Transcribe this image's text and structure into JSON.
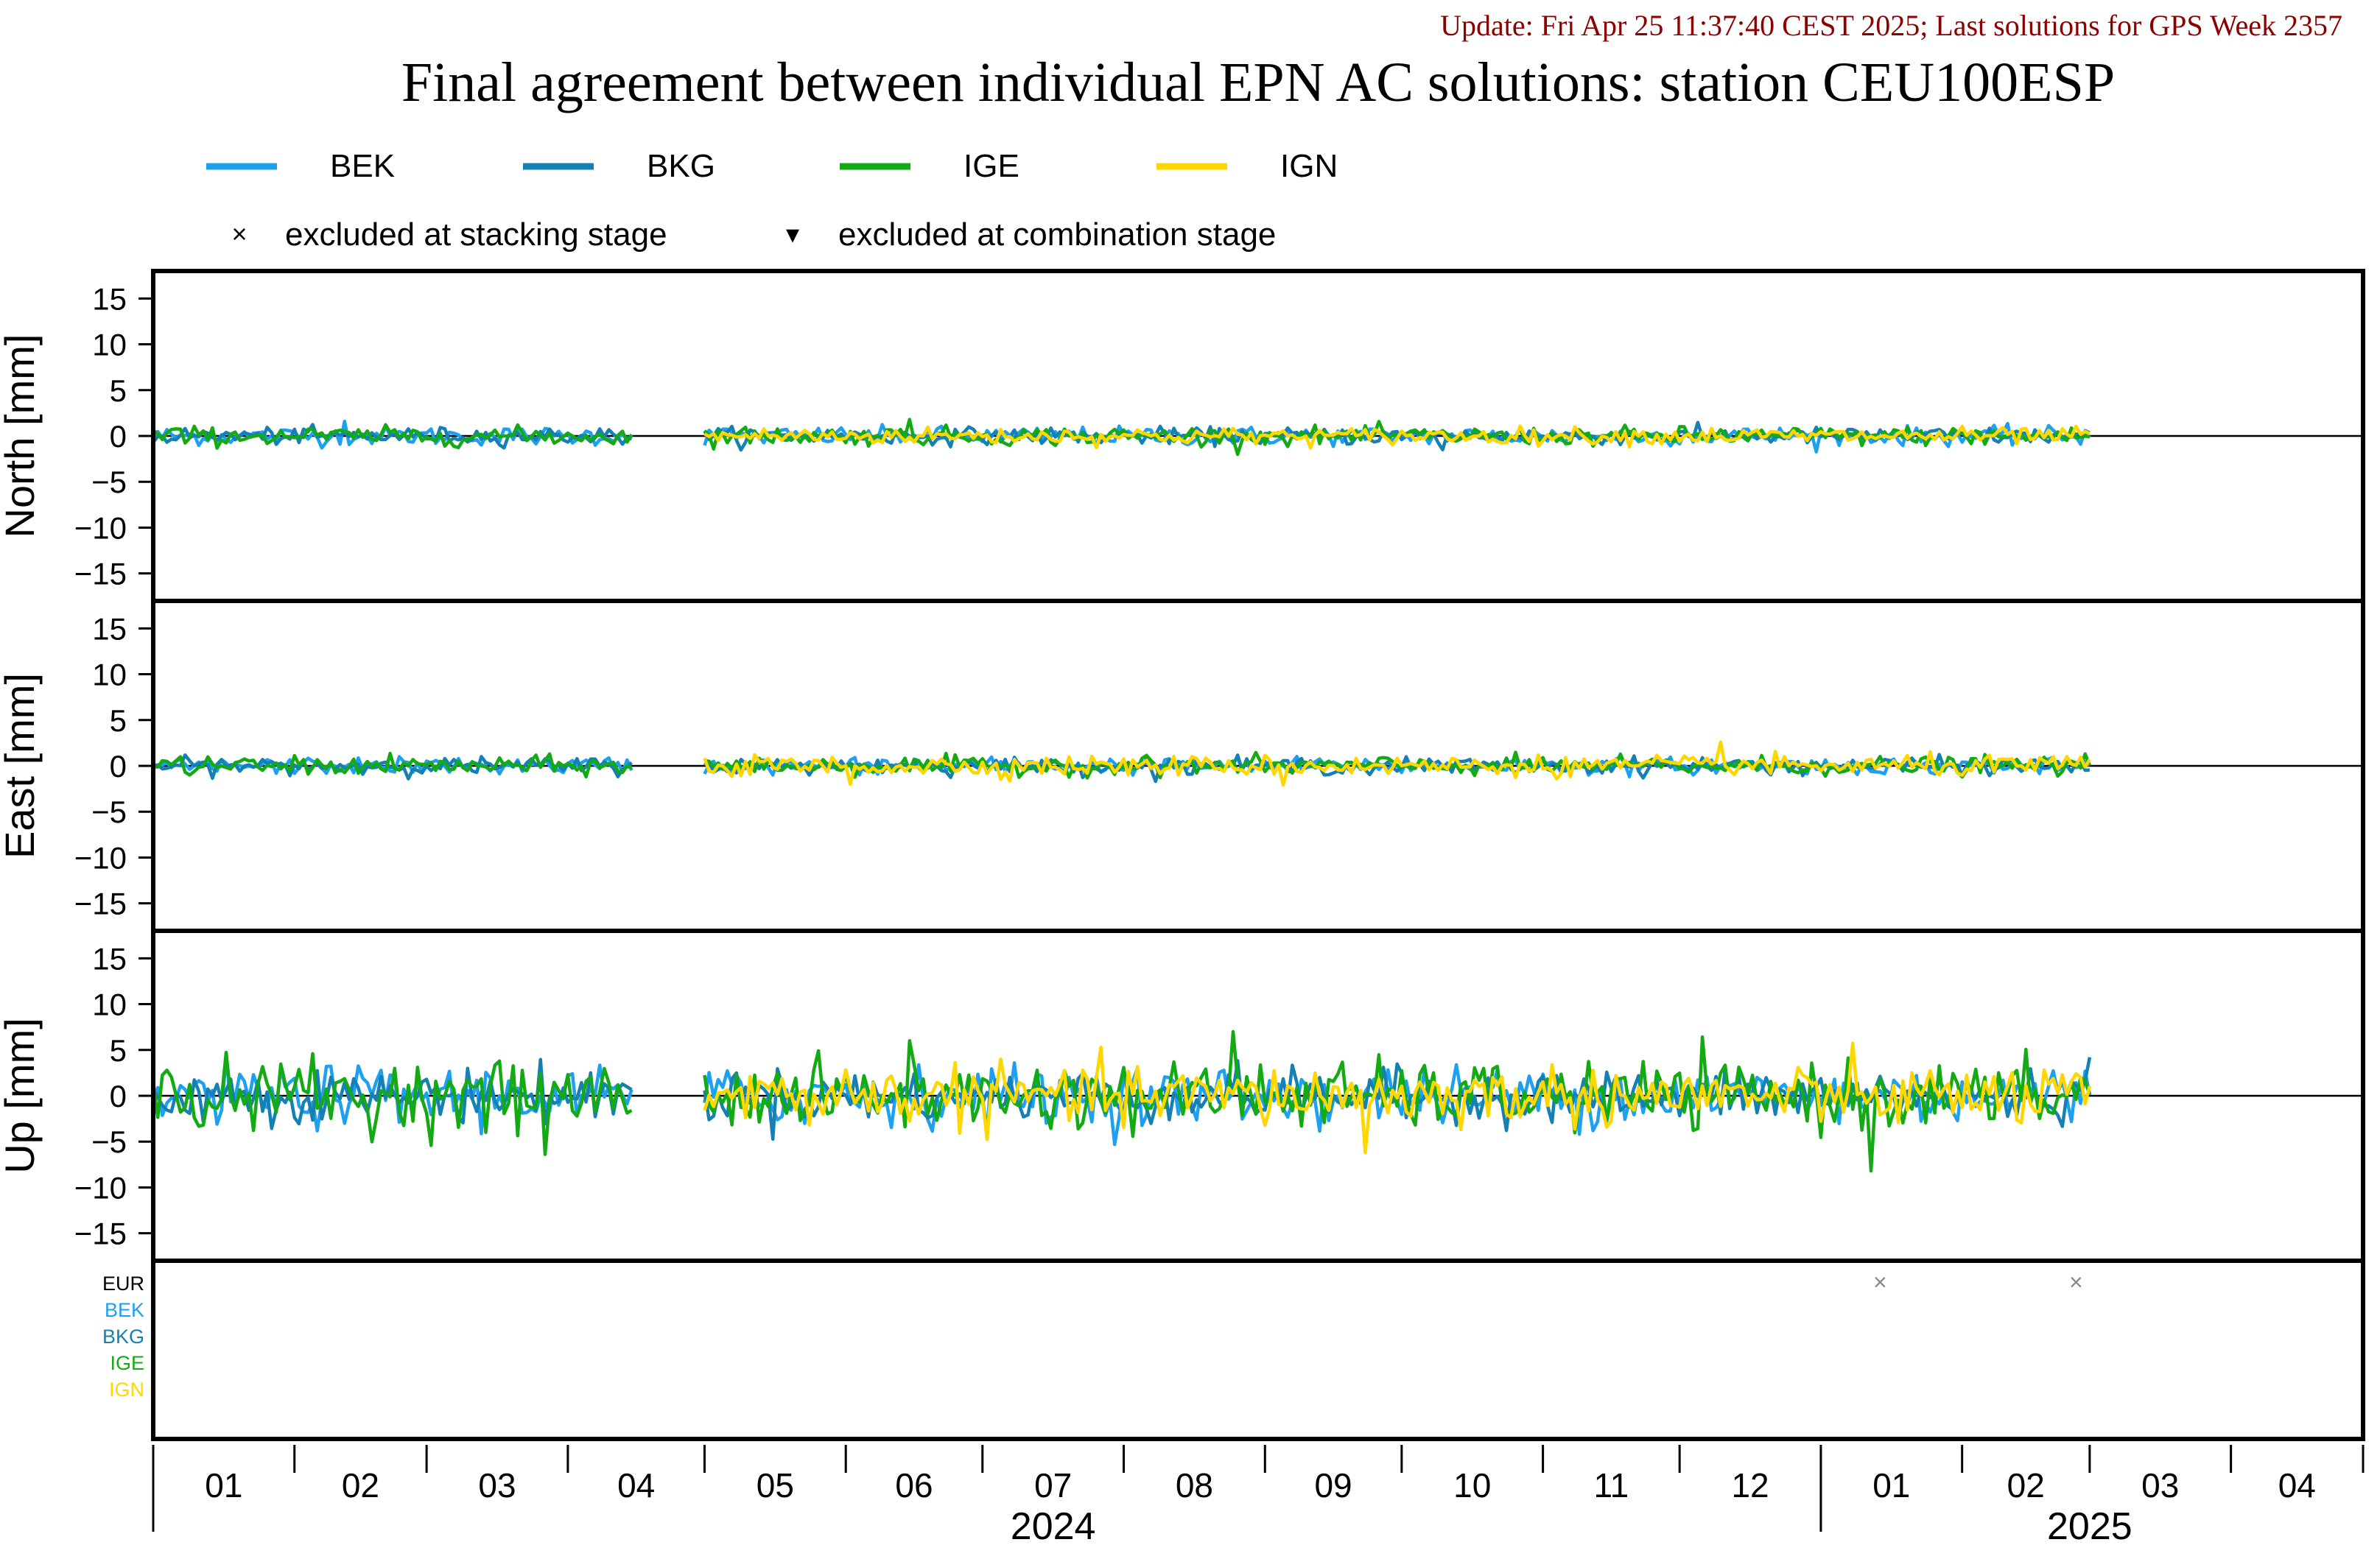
{
  "update_line": "Update: Fri Apr 25 11:37:40 CEST 2025; Last solutions for GPS Week 2357",
  "title": "Final agreement between individual EPN AC solutions: station CEU100ESP",
  "colors": {
    "BEK": "#1ea0f0",
    "BKG": "#1480b4",
    "IGE": "#14aa14",
    "IGN": "#ffd700",
    "EUR": "#000000",
    "update_text": "#8b0000"
  },
  "legend": {
    "series": [
      "BEK",
      "BKG",
      "IGE",
      "IGN"
    ],
    "markers": [
      {
        "symbol": "×",
        "label": "excluded at stacking stage"
      },
      {
        "symbol": "▾",
        "label": "excluded at combination stage"
      }
    ]
  },
  "exclusion_labels": [
    "EUR",
    "BEK",
    "BKG",
    "IGE",
    "IGN"
  ],
  "x_axis": {
    "months": [
      "01",
      "02",
      "03",
      "04",
      "05",
      "06",
      "07",
      "08",
      "09",
      "10",
      "11",
      "12",
      "01",
      "02",
      "03",
      "04"
    ],
    "years": [
      {
        "label": "2024",
        "month_index": 6
      },
      {
        "label": "2025",
        "month_index": 13.5
      }
    ]
  },
  "chart_data": {
    "type": "line",
    "x_range": [
      "2024-01-01",
      "2025-04-30"
    ],
    "series_names": [
      "BEK",
      "BKG",
      "IGE",
      "IGN"
    ],
    "panels": [
      {
        "ylabel": "North [mm]",
        "ylim": [
          -18,
          18
        ],
        "yticks": [
          15,
          10,
          5,
          0,
          -5,
          -10,
          -15
        ],
        "amplitude": {
          "BEK": 0.5,
          "BKG": 0.45,
          "IGE": 0.5,
          "IGN": 0.45
        },
        "notable_points": [
          {
            "series": "IGE",
            "date": "2024-06-15",
            "value": 1.8
          },
          {
            "series": "BEK",
            "date": "2024-02-12",
            "value": 1.6
          },
          {
            "series": "BKG",
            "date": "2024-10-10",
            "value": -1.5
          }
        ]
      },
      {
        "ylabel": "East [mm]",
        "ylim": [
          -18,
          18
        ],
        "yticks": [
          15,
          10,
          5,
          0,
          -5,
          -10,
          -15
        ],
        "amplitude": {
          "BEK": 0.45,
          "BKG": 0.45,
          "IGE": 0.5,
          "IGN": 0.55
        },
        "notable_points": [
          {
            "series": "IGN",
            "date": "2024-12-10",
            "value": 2.6
          },
          {
            "series": "IGN",
            "date": "2024-06-02",
            "value": -2.0
          },
          {
            "series": "IGN",
            "date": "2024-09-05",
            "value": -2.1
          }
        ]
      },
      {
        "ylabel": "Up [mm]",
        "ylim": [
          -18,
          18
        ],
        "yticks": [
          15,
          10,
          5,
          0,
          -5,
          -10,
          -15
        ],
        "amplitude": {
          "BEK": 1.6,
          "BKG": 1.4,
          "IGE": 1.8,
          "IGN": 1.6
        },
        "notable_points": [
          {
            "series": "IGE",
            "date": "2024-08-25",
            "value": 7.0
          },
          {
            "series": "IGE",
            "date": "2024-06-15",
            "value": 6.0
          },
          {
            "series": "IGE",
            "date": "2025-01-12",
            "value": -8.2
          },
          {
            "series": "IGE",
            "date": "2024-03-27",
            "value": -6.4
          },
          {
            "series": "IGN",
            "date": "2024-09-23",
            "value": -6.2
          },
          {
            "series": "IGE",
            "date": "2024-02-05",
            "value": 4.6
          },
          {
            "series": "BKG",
            "date": "2025-03-01",
            "value": 4.2
          }
        ]
      }
    ],
    "segments": [
      {
        "series": "BEK",
        "start": "2024-01-01",
        "end": "2024-04-15"
      },
      {
        "series": "BKG",
        "start": "2024-01-01",
        "end": "2024-04-15"
      },
      {
        "series": "IGE",
        "start": "2024-01-01",
        "end": "2024-04-15"
      },
      {
        "series": "BEK",
        "start": "2024-05-01",
        "end": "2025-03-01"
      },
      {
        "series": "BKG",
        "start": "2024-05-01",
        "end": "2025-03-01"
      },
      {
        "series": "IGE",
        "start": "2024-05-01",
        "end": "2025-03-01"
      },
      {
        "series": "IGN",
        "start": "2024-05-01",
        "end": "2025-03-01"
      }
    ],
    "exclusions": [
      {
        "row": "EUR",
        "date": "2025-01-14",
        "stage": "stacking"
      },
      {
        "row": "EUR",
        "date": "2025-02-26",
        "stage": "stacking"
      }
    ]
  }
}
